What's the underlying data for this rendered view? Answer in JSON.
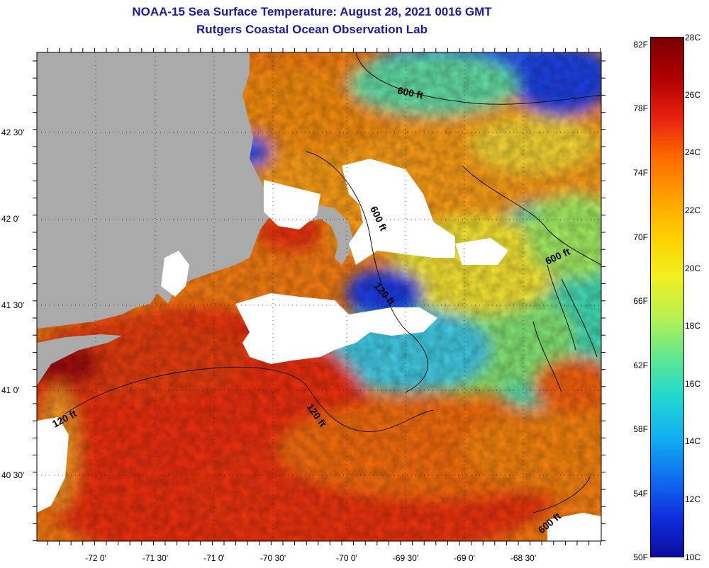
{
  "title": {
    "line1": "NOAA-15 Sea Surface Temperature:  August 28, 2021 0016 GMT",
    "line2": "Rutgers Coastal Ocean Observation Lab"
  },
  "map": {
    "lat_labels": [
      "42 30'",
      "42 0'",
      "41 30'",
      "41 0'",
      "40 30'"
    ],
    "lon_labels": [
      "-72 0'",
      "-71 30'",
      "-71 0'",
      "-70 30'",
      "-70 0'",
      "-69 30'",
      "-69 0'",
      "-68 30'"
    ],
    "contour_labels": [
      "600 ft",
      "600 ft",
      "600 ft",
      "600 ft",
      "120 ft",
      "120 ft",
      "120 ft"
    ],
    "colors": {
      "land": "#aaaaaa",
      "cloud": "#ffffff",
      "warm": "#e8350f",
      "cool": "#1030d0"
    }
  },
  "colorbar": {
    "fahrenheit": [
      "82F",
      "78F",
      "74F",
      "70F",
      "66F",
      "62F",
      "58F",
      "54F",
      "50F"
    ],
    "celsius": [
      "28C",
      "26C",
      "24C",
      "22C",
      "20C",
      "18C",
      "16C",
      "14C",
      "12C",
      "10C"
    ],
    "stops": [
      "#7a0000",
      "#b00000",
      "#e82010",
      "#ff6a00",
      "#ffa000",
      "#ffd000",
      "#f0f020",
      "#b8f050",
      "#60e890",
      "#20d8d0",
      "#10b0f0",
      "#1070f0",
      "#1030e0",
      "#0a0aa0"
    ]
  }
}
